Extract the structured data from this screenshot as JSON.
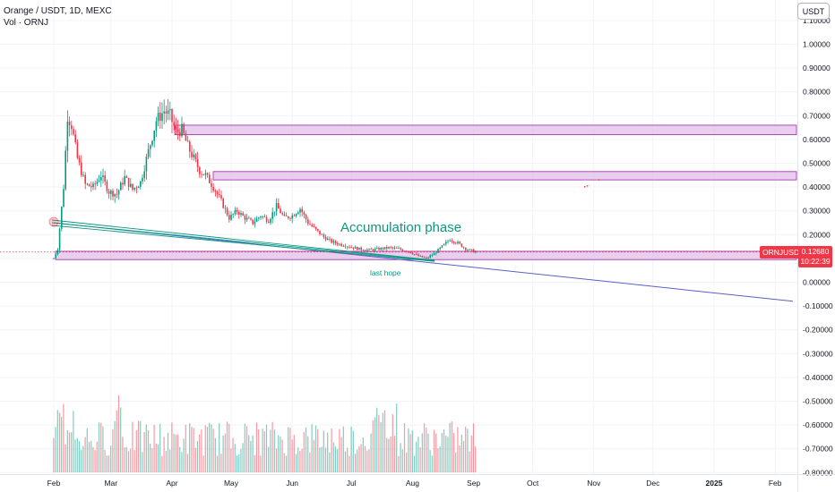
{
  "header": {
    "title": "Orange / USDT, 1D, MEXC",
    "volume": "Vol · ORNJ"
  },
  "currency": "USDT",
  "last_price": {
    "symbol": "ORNJUSDT",
    "value": "0.12680",
    "countdown": "10:22:39",
    "color": "#f23645"
  },
  "colors": {
    "up": "#089981",
    "down": "#f23645",
    "zone_fill": "#e1bee7",
    "zone_stroke": "#9c27b0",
    "trendline": "#5b5fc7",
    "wedge": "#089981"
  },
  "annotations": {
    "accumulation": "Accumulation phase",
    "last_hope": "last hope"
  },
  "chart_data": {
    "type": "candlestick",
    "title": "Orange / USDT, 1D, MEXC",
    "y_axis_labels": [
      "1.10000",
      "1.00000",
      "0.90000",
      "0.80000",
      "0.70000",
      "0.60000",
      "0.50000",
      "0.40000",
      "0.30000",
      "0.20000",
      "0.10000",
      "0.00000",
      "-0.10000",
      "-0.20000",
      "-0.30000",
      "-0.40000",
      "-0.50000",
      "-0.60000",
      "-0.70000",
      "-0.80000"
    ],
    "x_axis_labels": [
      "Feb",
      "Mar",
      "Apr",
      "May",
      "Jun",
      "Jul",
      "Aug",
      "Sep",
      "Oct",
      "Nov",
      "Dec",
      "2025",
      "Feb"
    ],
    "ylim": [
      -0.82,
      1.12
    ],
    "price_anchors": [
      [
        "2024-02-01",
        0.1
      ],
      [
        "2024-02-03",
        0.14
      ],
      [
        "2024-02-06",
        0.4
      ],
      [
        "2024-02-08",
        0.7
      ],
      [
        "2024-02-10",
        0.66
      ],
      [
        "2024-02-13",
        0.52
      ],
      [
        "2024-02-17",
        0.41
      ],
      [
        "2024-02-21",
        0.4
      ],
      [
        "2024-02-25",
        0.45
      ],
      [
        "2024-02-29",
        0.38
      ],
      [
        "2024-03-04",
        0.37
      ],
      [
        "2024-03-08",
        0.44
      ],
      [
        "2024-03-12",
        0.39
      ],
      [
        "2024-03-16",
        0.42
      ],
      [
        "2024-03-20",
        0.55
      ],
      [
        "2024-03-24",
        0.68
      ],
      [
        "2024-03-28",
        0.72
      ],
      [
        "2024-03-31",
        0.7
      ],
      [
        "2024-04-03",
        0.63
      ],
      [
        "2024-04-06",
        0.64
      ],
      [
        "2024-04-09",
        0.57
      ],
      [
        "2024-04-12",
        0.52
      ],
      [
        "2024-04-15",
        0.47
      ],
      [
        "2024-04-18",
        0.45
      ],
      [
        "2024-04-22",
        0.4
      ],
      [
        "2024-04-26",
        0.34
      ],
      [
        "2024-04-30",
        0.27
      ],
      [
        "2024-05-04",
        0.3
      ],
      [
        "2024-05-08",
        0.27
      ],
      [
        "2024-05-12",
        0.25
      ],
      [
        "2024-05-16",
        0.28
      ],
      [
        "2024-05-20",
        0.26
      ],
      [
        "2024-05-24",
        0.32
      ],
      [
        "2024-05-28",
        0.27
      ],
      [
        "2024-06-01",
        0.28
      ],
      [
        "2024-06-05",
        0.31
      ],
      [
        "2024-06-09",
        0.25
      ],
      [
        "2024-06-13",
        0.22
      ],
      [
        "2024-06-17",
        0.19
      ],
      [
        "2024-06-21",
        0.17
      ],
      [
        "2024-06-25",
        0.16
      ],
      [
        "2024-06-30",
        0.15
      ],
      [
        "2024-07-05",
        0.14
      ],
      [
        "2024-07-10",
        0.135
      ],
      [
        "2024-07-15",
        0.14
      ],
      [
        "2024-07-20",
        0.145
      ],
      [
        "2024-07-25",
        0.14
      ],
      [
        "2024-07-30",
        0.13
      ],
      [
        "2024-08-04",
        0.11
      ],
      [
        "2024-08-08",
        0.1
      ],
      [
        "2024-08-12",
        0.12
      ],
      [
        "2024-08-16",
        0.15
      ],
      [
        "2024-08-20",
        0.18
      ],
      [
        "2024-08-24",
        0.165
      ],
      [
        "2024-08-28",
        0.14
      ],
      [
        "2024-09-02",
        0.127
      ]
    ],
    "zones": [
      {
        "low": 0.62,
        "high": 0.66
      },
      {
        "low": 0.43,
        "high": 0.465
      },
      {
        "low": 0.095,
        "high": 0.13
      }
    ],
    "trendline": {
      "from": [
        "2024-02-01",
        0.25
      ],
      "to": [
        "2025-02-10",
        -0.08
      ]
    },
    "volume_note": "volume histogram overlaid at bottom of the pane"
  }
}
